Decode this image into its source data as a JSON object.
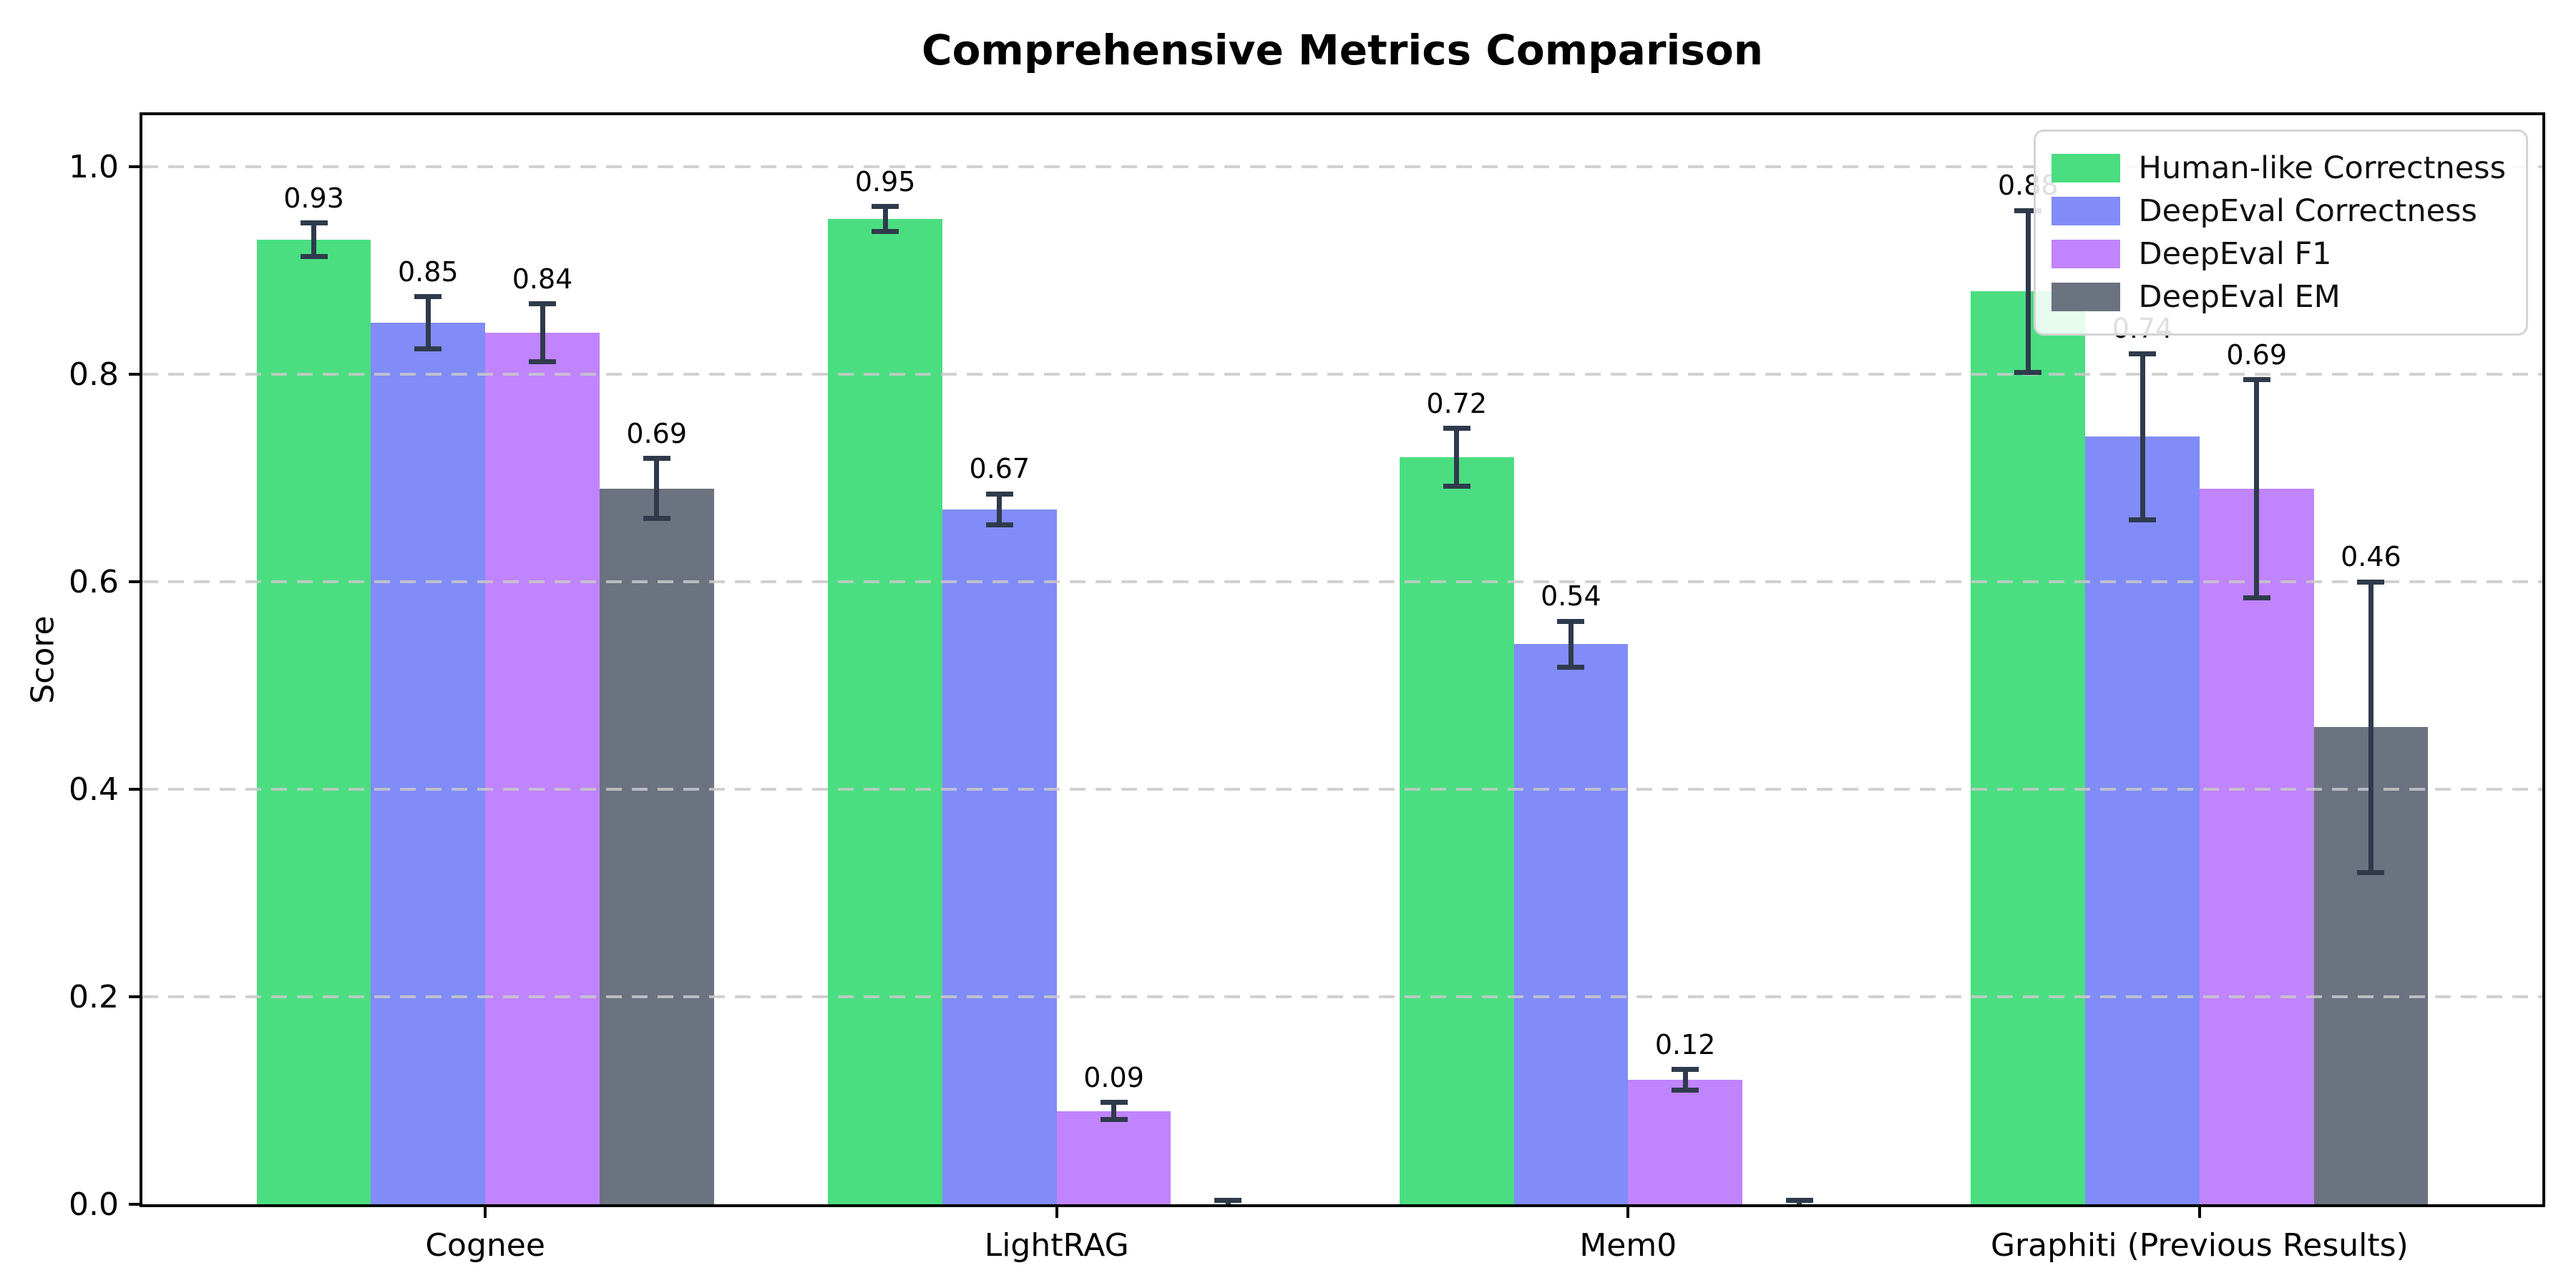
{
  "figure": {
    "background": "#ffffff"
  },
  "chart_data": {
    "type": "bar",
    "title": "Comprehensive Metrics Comparison",
    "xlabel": "",
    "ylabel": "Score",
    "categories": [
      "Cognee",
      "LightRAG",
      "Mem0",
      "Graphiti (Previous Results)"
    ],
    "series": [
      {
        "name": "Human-like Correctness",
        "color": "#4ade80",
        "values": [
          0.93,
          0.95,
          0.72,
          0.88
        ],
        "errors": [
          0.016,
          0.012,
          0.028,
          0.078
        ],
        "bar_labels": [
          "0.93",
          "0.95",
          "0.72",
          "0.88"
        ]
      },
      {
        "name": "DeepEval Correctness",
        "color": "#818cf8",
        "values": [
          0.85,
          0.67,
          0.54,
          0.74
        ],
        "errors": [
          0.025,
          0.015,
          0.022,
          0.08
        ],
        "bar_labels": [
          "0.85",
          "0.67",
          "0.54",
          "0.74"
        ]
      },
      {
        "name": "DeepEval F1",
        "color": "#c084fc",
        "values": [
          0.84,
          0.09,
          0.12,
          0.69
        ],
        "errors": [
          0.028,
          0.008,
          0.01,
          0.105
        ],
        "bar_labels": [
          "0.84",
          "0.09",
          "0.12",
          "0.69"
        ]
      },
      {
        "name": "DeepEval EM",
        "color": "#6b7280",
        "values": [
          0.69,
          0.0,
          0.0,
          0.46
        ],
        "errors": [
          0.029,
          0.004,
          0.004,
          0.14
        ],
        "bar_labels": [
          "0.69",
          "",
          "",
          "0.46"
        ]
      }
    ],
    "ytick_labels": [
      "0.0",
      "0.2",
      "0.4",
      "0.6",
      "0.8",
      "1.0"
    ],
    "yticks": [
      0.0,
      0.2,
      0.4,
      0.6,
      0.8,
      1.0
    ],
    "ylim": [
      0,
      1.05
    ],
    "xlim": [
      -0.6,
      3.6
    ],
    "bar_width_units": 0.2,
    "grid": "horizontal-dashed",
    "grid_color": "#c9c9c9",
    "legend_position": "upper-right",
    "error_bar_color": "#2f3b4c",
    "axis_color": "#000000",
    "value_label_color": "#000000"
  }
}
